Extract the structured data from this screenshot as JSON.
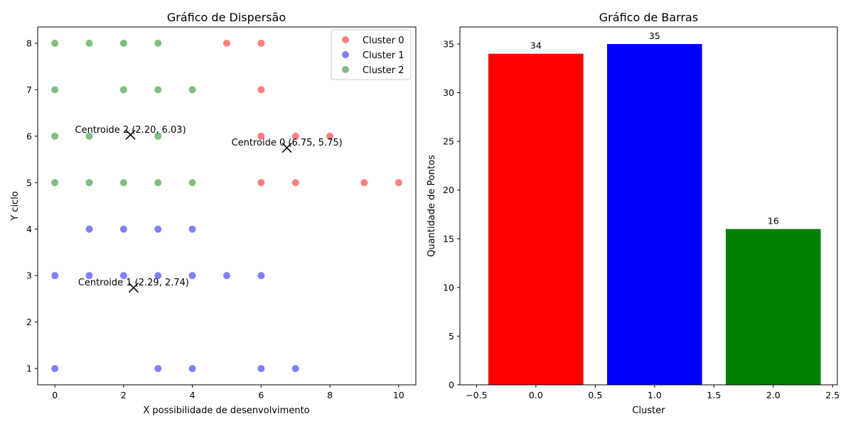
{
  "chart_data": [
    {
      "type": "scatter",
      "title": "Gráfico de Dispersão",
      "xlabel": "X possibilidade de desenvolvimento",
      "ylabel": "Y ciclo",
      "xlim": [
        -0.5,
        10.5
      ],
      "ylim": [
        0.65,
        8.35
      ],
      "xticks": [
        0,
        2,
        4,
        6,
        8,
        10
      ],
      "yticks": [
        1,
        2,
        3,
        4,
        5,
        6,
        7,
        8
      ],
      "grid": false,
      "legend_position": "top-right",
      "series": [
        {
          "name": "Cluster 0",
          "color": "#ff0000",
          "points": [
            [
              5,
              8
            ],
            [
              6,
              8
            ],
            [
              6,
              7
            ],
            [
              6,
              6
            ],
            [
              7,
              6
            ],
            [
              8,
              6
            ],
            [
              6,
              5
            ],
            [
              7,
              5
            ],
            [
              9,
              5
            ],
            [
              10,
              5
            ]
          ]
        },
        {
          "name": "Cluster 1",
          "color": "#0000ff",
          "points": [
            [
              1,
              4
            ],
            [
              2,
              4
            ],
            [
              3,
              4
            ],
            [
              4,
              4
            ],
            [
              0,
              3
            ],
            [
              1,
              3
            ],
            [
              2,
              3
            ],
            [
              3,
              3
            ],
            [
              4,
              3
            ],
            [
              5,
              3
            ],
            [
              6,
              3
            ],
            [
              0,
              1
            ],
            [
              3,
              1
            ],
            [
              4,
              1
            ],
            [
              6,
              1
            ],
            [
              7,
              1
            ]
          ]
        },
        {
          "name": "Cluster 2",
          "color": "#008000",
          "points": [
            [
              0,
              8
            ],
            [
              1,
              8
            ],
            [
              2,
              8
            ],
            [
              3,
              8
            ],
            [
              0,
              7
            ],
            [
              2,
              7
            ],
            [
              3,
              7
            ],
            [
              4,
              7
            ],
            [
              0,
              6
            ],
            [
              1,
              6
            ],
            [
              3,
              6
            ],
            [
              0,
              5
            ],
            [
              1,
              5
            ],
            [
              2,
              5
            ],
            [
              3,
              5
            ],
            [
              4,
              5
            ]
          ]
        }
      ],
      "centroids": [
        {
          "label": "Centroide 0 (6.75, 5.75)",
          "x": 6.75,
          "y": 5.75
        },
        {
          "label": "Centroide 1 (2.29, 2.74)",
          "x": 2.29,
          "y": 2.74
        },
        {
          "label": "Centroide 2 (2.20, 6.03)",
          "x": 2.2,
          "y": 6.03
        }
      ]
    },
    {
      "type": "bar",
      "title": "Gráfico de Barras",
      "xlabel": "Cluster",
      "ylabel": "Quantidade de Pontos",
      "categories": [
        0,
        1,
        2
      ],
      "values": [
        34,
        35,
        16
      ],
      "colors": [
        "#ff0000",
        "#0000ff",
        "#008000"
      ],
      "xlim": [
        -0.64,
        2.54
      ],
      "ylim": [
        0,
        36.75
      ],
      "xticks": [
        -0.5,
        0.0,
        0.5,
        1.0,
        1.5,
        2.0,
        2.5
      ],
      "xtick_labels": [
        "−0.5",
        "0.0",
        "0.5",
        "1.0",
        "1.5",
        "2.0",
        "2.5"
      ],
      "yticks": [
        0,
        5,
        10,
        15,
        20,
        25,
        30,
        35
      ],
      "grid": false
    }
  ]
}
